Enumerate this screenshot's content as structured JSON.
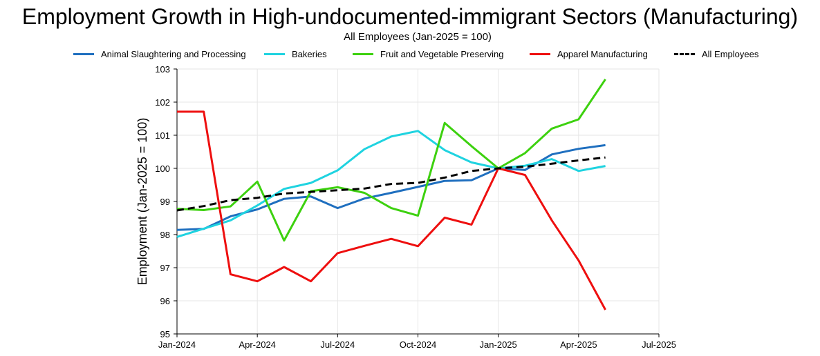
{
  "chart_data": {
    "type": "line",
    "title": "Employment Growth in High-undocumented-immigrant Sectors (Manufacturing)",
    "subtitle": "All Employees (Jan-2025 = 100)",
    "xlabel": "",
    "ylabel": "Employment (Jan-2025 = 100)",
    "ylim": [
      95,
      103
    ],
    "yticks": [
      "95",
      "96",
      "97",
      "98",
      "99",
      "100",
      "101",
      "102",
      "103"
    ],
    "xlim": [
      0,
      18
    ],
    "xticks": [
      {
        "label": "Jan-2024",
        "x": 0
      },
      {
        "label": "Apr-2024",
        "x": 3
      },
      {
        "label": "Jul-2024",
        "x": 6
      },
      {
        "label": "Oct-2024",
        "x": 9
      },
      {
        "label": "Jan-2025",
        "x": 12
      },
      {
        "label": "Apr-2025",
        "x": 15
      },
      {
        "label": "Jul-2025",
        "x": 18
      }
    ],
    "x": [
      "Jan-2024",
      "Feb-2024",
      "Mar-2024",
      "Apr-2024",
      "May-2024",
      "Jun-2024",
      "Jul-2024",
      "Aug-2024",
      "Sep-2024",
      "Oct-2024",
      "Nov-2024",
      "Dec-2024",
      "Jan-2025",
      "Feb-2025",
      "Mar-2025",
      "Apr-2025",
      "May-2025"
    ],
    "grid": true,
    "legend_position": "top",
    "series": [
      {
        "name": "Animal Slaughtering and Processing",
        "color": "#1f6fbf",
        "dashed": false,
        "values": [
          98.14,
          98.17,
          98.55,
          98.76,
          99.08,
          99.15,
          98.8,
          99.09,
          99.26,
          99.44,
          99.62,
          99.64,
          100.0,
          99.95,
          100.42,
          100.59,
          100.7
        ]
      },
      {
        "name": "Bakeries",
        "color": "#1fd3e0",
        "dashed": false,
        "values": [
          97.93,
          98.18,
          98.43,
          98.88,
          99.38,
          99.56,
          99.94,
          100.58,
          100.96,
          101.13,
          100.55,
          100.18,
          100.0,
          100.08,
          100.28,
          99.92,
          100.07
        ]
      },
      {
        "name": "Fruit and Vegetable Preserving",
        "color": "#3dd10f",
        "dashed": false,
        "values": [
          98.78,
          98.74,
          98.85,
          99.6,
          97.82,
          99.31,
          99.43,
          99.26,
          98.8,
          98.57,
          101.37,
          100.67,
          100.0,
          100.46,
          101.2,
          101.48,
          102.69
        ]
      },
      {
        "name": "Apparel Manufacturing",
        "color": "#ee0f0f",
        "dashed": false,
        "values": [
          101.71,
          101.71,
          96.8,
          96.59,
          97.02,
          96.59,
          97.44,
          97.66,
          97.87,
          97.65,
          98.51,
          98.3,
          100.0,
          99.8,
          98.43,
          97.22,
          95.73
        ]
      },
      {
        "name": "All Employees",
        "color": "#000000",
        "dashed": true,
        "values": [
          98.73,
          98.86,
          99.04,
          99.11,
          99.24,
          99.29,
          99.34,
          99.39,
          99.53,
          99.56,
          99.72,
          99.92,
          100.0,
          100.05,
          100.14,
          100.24,
          100.33
        ]
      }
    ]
  }
}
